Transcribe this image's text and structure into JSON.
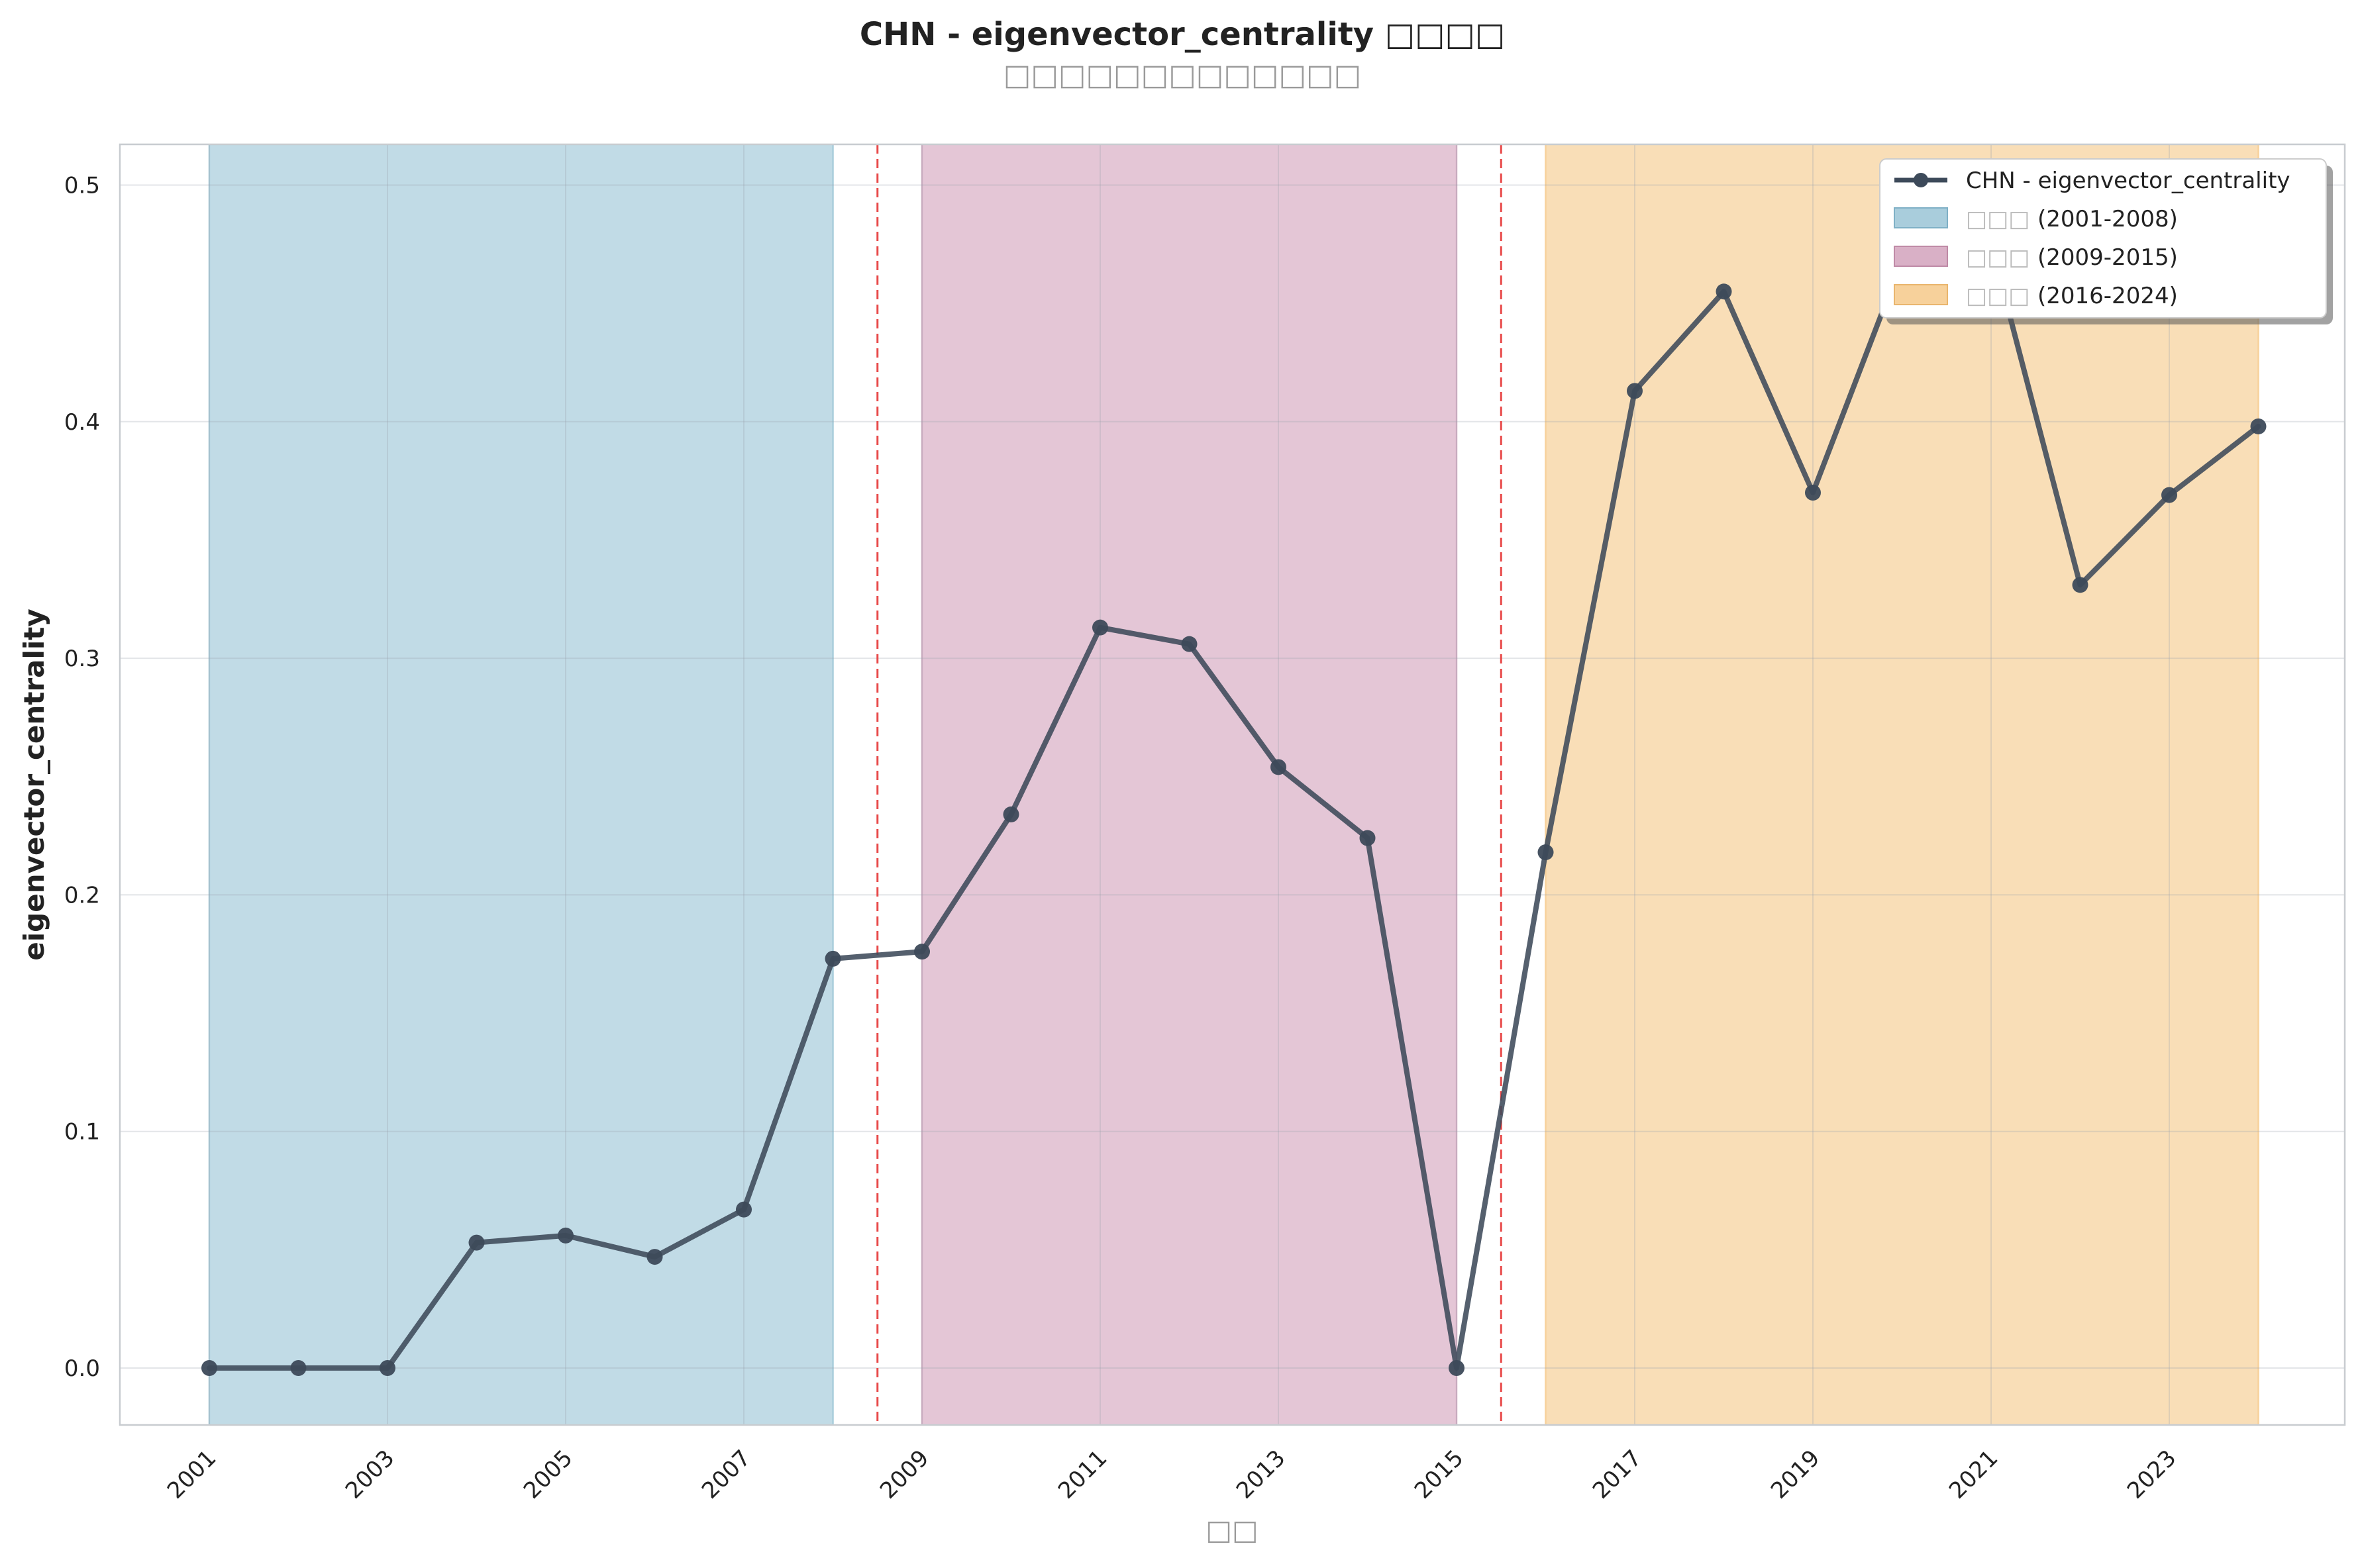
{
  "chart_data": {
    "type": "line",
    "title": "CHN - eigenvector_centrality □□□□",
    "subtitle": "□□□□□□□□□□□□□",
    "xlabel": "□□",
    "ylabel": "eigenvector_centrality",
    "xlim": [
      2000,
      2025
    ],
    "ylim": [
      -0.025,
      0.5175
    ],
    "x_ticks": [
      2001,
      2003,
      2005,
      2007,
      2009,
      2011,
      2013,
      2015,
      2017,
      2019,
      2021,
      2023
    ],
    "y_ticks": [
      0.0,
      0.1,
      0.2,
      0.3,
      0.4,
      0.5
    ],
    "y_tick_labels": [
      "0.0",
      "0.1",
      "0.2",
      "0.3",
      "0.4",
      "0.5"
    ],
    "grid": true,
    "legend_position": "top-right",
    "series": [
      {
        "name": "CHN - eigenvector_centrality",
        "color": "#3d4a5a",
        "x": [
          2001,
          2002,
          2003,
          2004,
          2005,
          2006,
          2007,
          2008,
          2009,
          2010,
          2011,
          2012,
          2013,
          2014,
          2015,
          2016,
          2017,
          2018,
          2019,
          2020,
          2021,
          2022,
          2023,
          2024
        ],
        "y": [
          0.0,
          0.0,
          0.0,
          0.053,
          0.056,
          0.047,
          0.067,
          0.173,
          0.176,
          0.234,
          0.313,
          0.306,
          0.254,
          0.224,
          0.0,
          0.218,
          0.413,
          0.455,
          0.37,
          0.468,
          0.475,
          0.331,
          0.369,
          0.398
        ]
      }
    ],
    "periods": [
      {
        "label_zh": "□□□",
        "label_range": "(2001-2008)",
        "start": 2001,
        "end": 2008,
        "color": "#a9cddc"
      },
      {
        "label_zh": "□□□",
        "label_range": "(2009-2015)",
        "start": 2009,
        "end": 2015,
        "color": "#d9b0c6"
      },
      {
        "label_zh": "□□□",
        "label_range": "(2016-2024)",
        "start": 2016,
        "end": 2024,
        "color": "#f7d19b"
      }
    ],
    "period_boundaries": [
      2008.5,
      2015.5
    ],
    "boundary_color": "#e84a4a"
  }
}
